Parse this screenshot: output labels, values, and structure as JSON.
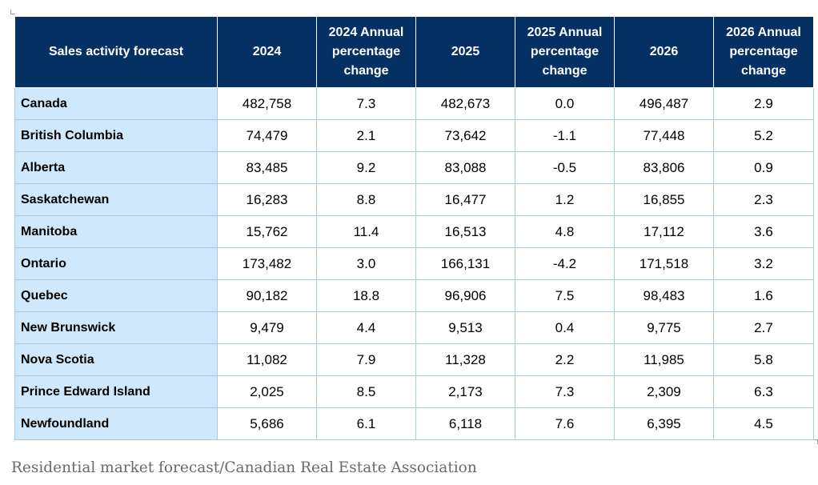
{
  "table": {
    "headers": [
      "Sales activity forecast",
      "2024",
      "2024 Annual percentage change",
      "2025",
      "2025 Annual percentage change",
      "2026",
      "2026 Annual percentage change"
    ],
    "rows": [
      [
        "Canada",
        "482,758",
        "7.3",
        "482,673",
        "0.0",
        "496,487",
        "2.9"
      ],
      [
        "British Columbia",
        "74,479",
        "2.1",
        "73,642",
        "-1.1",
        "77,448",
        "5.2"
      ],
      [
        "Alberta",
        "83,485",
        "9.2",
        "83,088",
        "-0.5",
        "83,806",
        "0.9"
      ],
      [
        "Saskatchewan",
        "16,283",
        "8.8",
        "16,477",
        "1.2",
        "16,855",
        "2.3"
      ],
      [
        "Manitoba",
        "15,762",
        "11.4",
        "16,513",
        "4.8",
        "17,112",
        "3.6"
      ],
      [
        "Ontario",
        "173,482",
        "3.0",
        "166,131",
        "-4.2",
        "171,518",
        "3.2"
      ],
      [
        "Quebec",
        "90,182",
        "18.8",
        "96,906",
        "7.5",
        "98,483",
        "1.6"
      ],
      [
        "New Brunswick",
        "9,479",
        "4.4",
        "9,513",
        "0.4",
        "9,775",
        "2.7"
      ],
      [
        "Nova Scotia",
        "11,082",
        "7.9",
        "11,328",
        "2.2",
        "11,985",
        "5.8"
      ],
      [
        "Prince Edward Island",
        "2,025",
        "8.5",
        "2,173",
        "7.3",
        "2,309",
        "6.3"
      ],
      [
        "Newfoundland",
        "5,686",
        "6.1",
        "6,118",
        "7.6",
        "6,395",
        "4.5"
      ]
    ]
  },
  "caption": "Residential market forecast/Canadian Real Estate Association",
  "colors": {
    "header_bg": "#053064",
    "header_text": "#ffffff",
    "region_cell_bg": "#cfe8fb",
    "grid": "#a7cce9",
    "caption_text": "#6a6a6a"
  }
}
